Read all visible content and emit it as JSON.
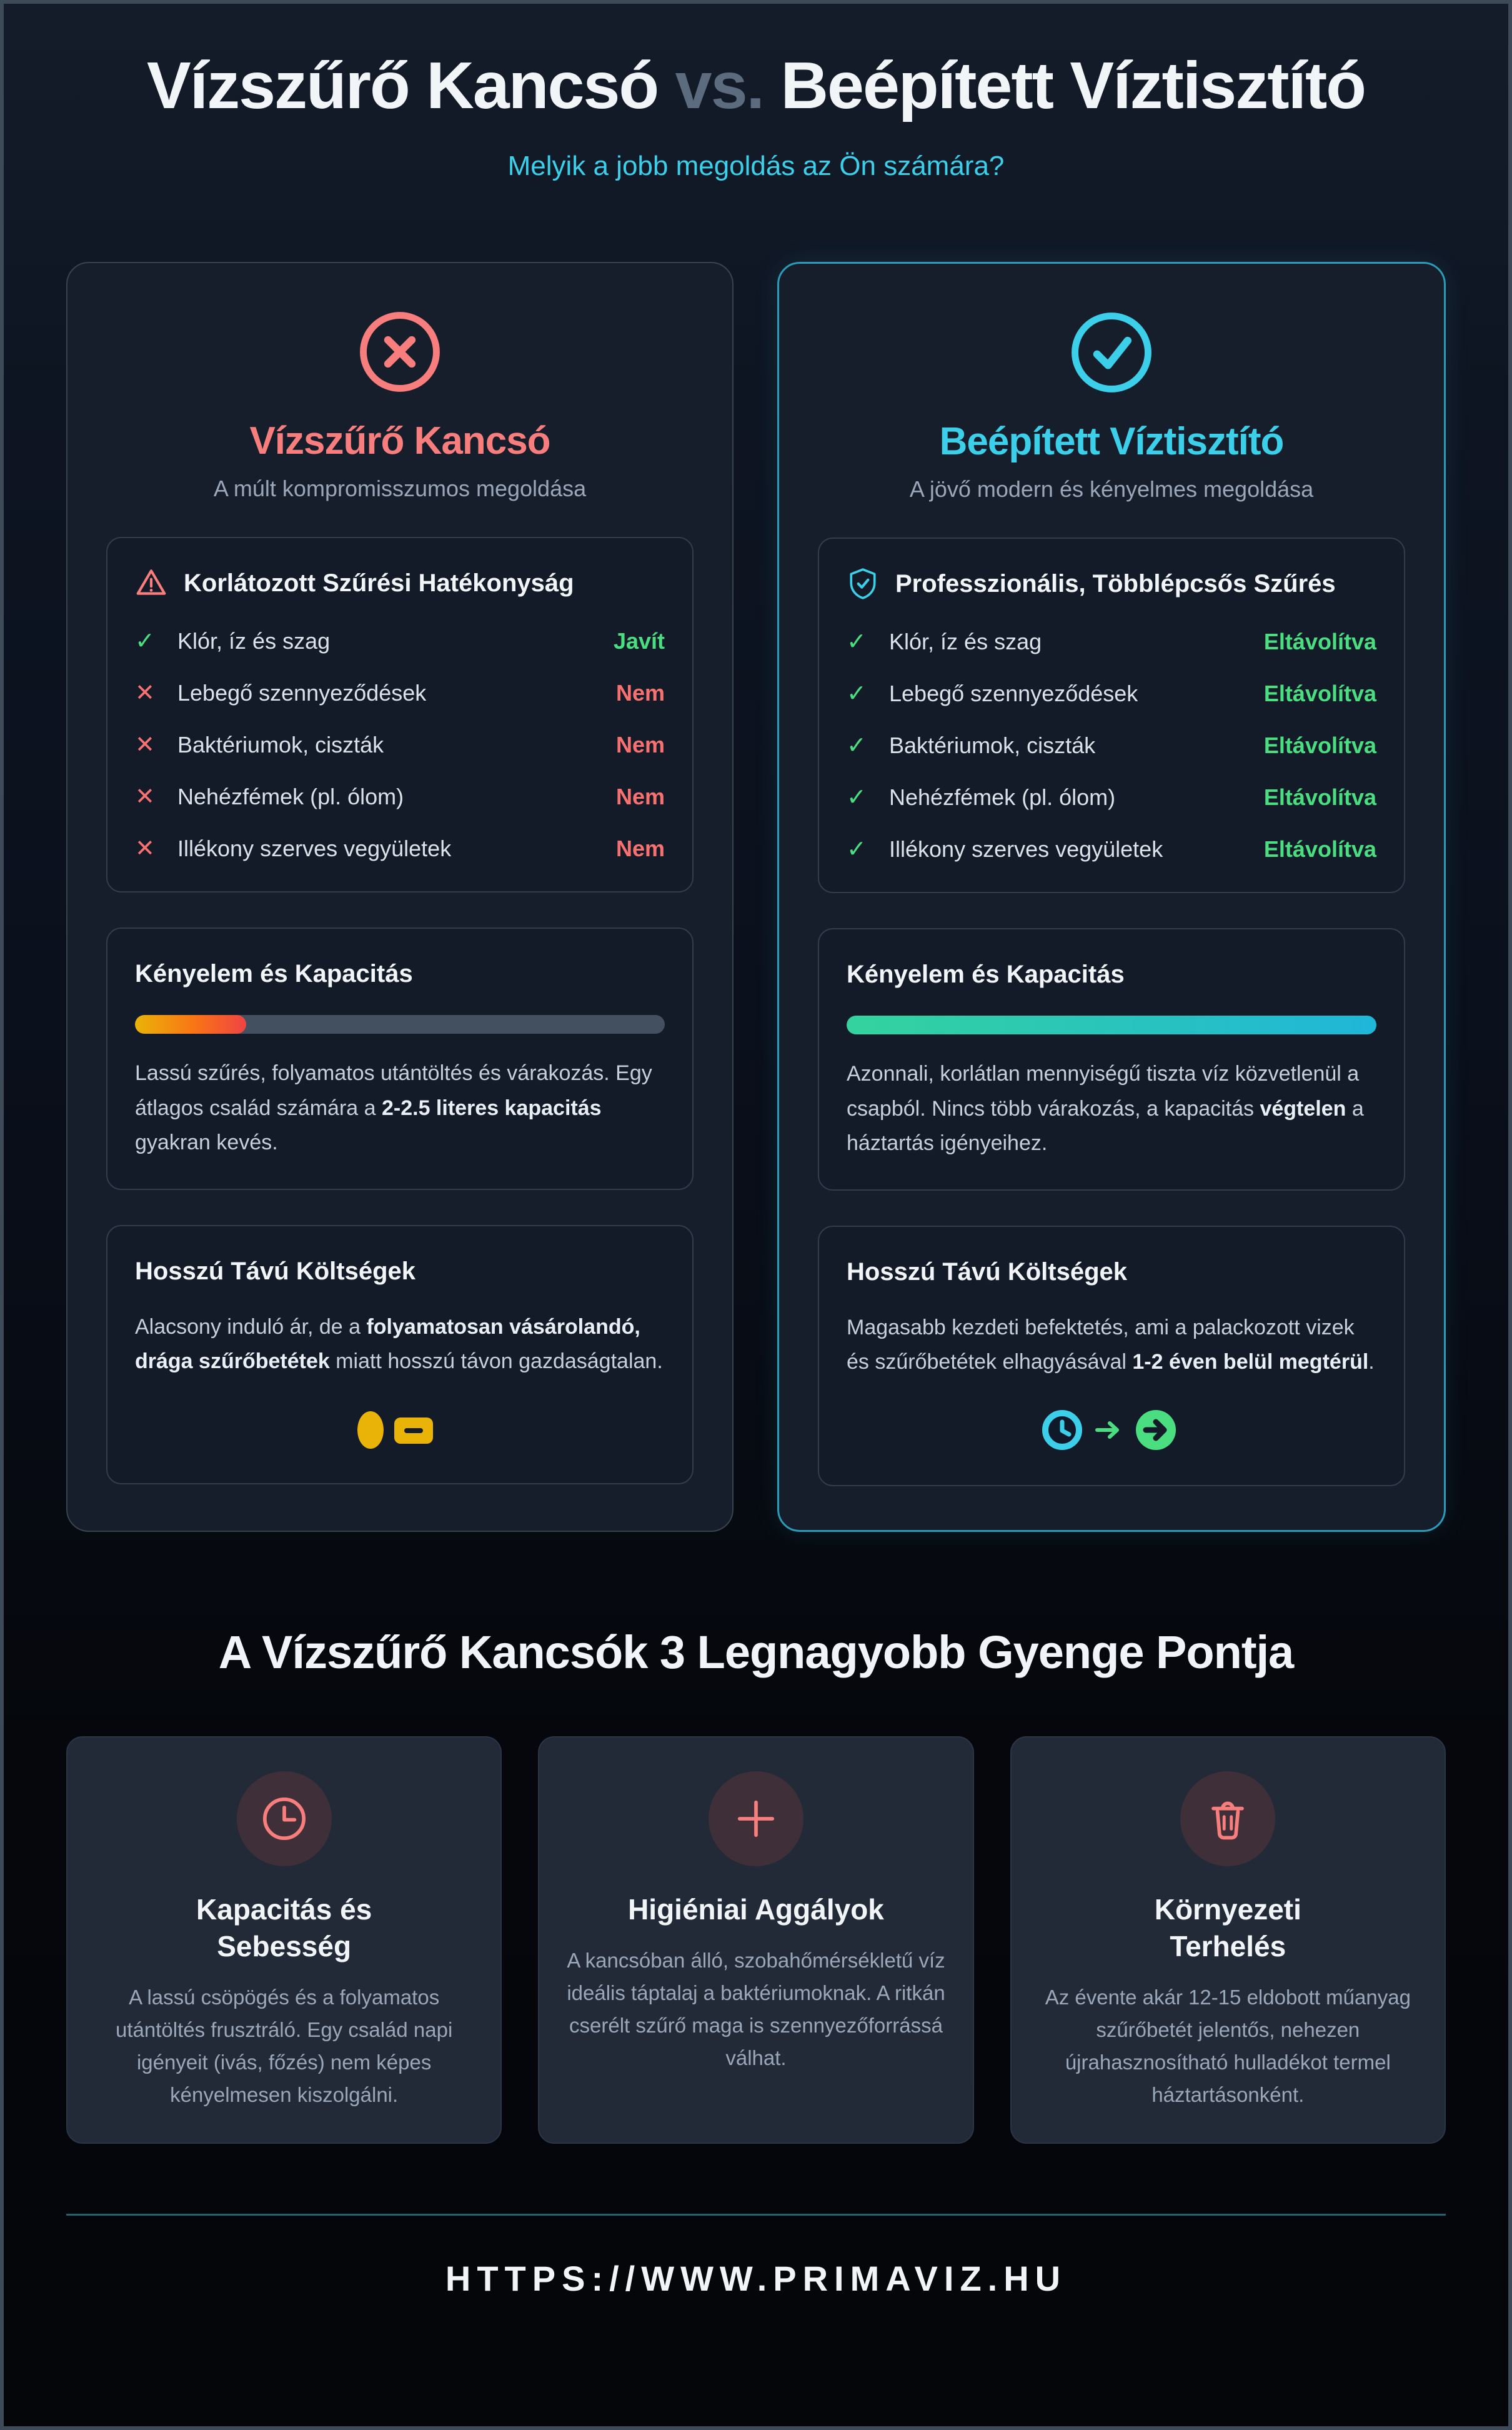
{
  "colors": {
    "page-border": "#3f4a59",
    "bg-top": "#141c2a",
    "bg-bottom": "#04060a",
    "card-bg": "#161e2c",
    "card-border": "#39434f",
    "box-bg": "#131b28",
    "box-border": "#313c4d",
    "bottom-card-bg": "#222a38",
    "white": "#f2f5f8",
    "muted": "#9aa7b8",
    "body": "#c6cfda",
    "salmon": "#f87d7d",
    "red": "#f87171",
    "green": "#4ade80",
    "cyan": "#3bcfe9",
    "cyan-border": "#2b9cb8",
    "vs": "#5c6b7e",
    "gold": "#eab308",
    "track": "#43505f",
    "divider": "#25626c"
  },
  "header": {
    "title_left": "Vízszűrő Kancsó",
    "title_vs": "vs.",
    "title_right": "Beépített Víztisztító",
    "subtitle": "Melyik a jobb megoldás az Ön számára?"
  },
  "left_card": {
    "icon": "x-circle-icon",
    "title": "Vízszűrő Kancsó",
    "subtitle": "A múlt kompromisszumos megoldása",
    "filter_box": {
      "icon": "warning-triangle-icon",
      "title": "Korlátozott Szűrési Hatékonyság",
      "rows": [
        {
          "icon": "check",
          "label": "Klór, íz és szag",
          "status": "Javít",
          "status_type": "good"
        },
        {
          "icon": "cross",
          "label": "Lebegő szennyeződések",
          "status": "Nem",
          "status_type": "bad"
        },
        {
          "icon": "cross",
          "label": "Baktériumok, ciszták",
          "status": "Nem",
          "status_type": "bad"
        },
        {
          "icon": "cross",
          "label": "Nehézfémek (pl. ólom)",
          "status": "Nem",
          "status_type": "bad"
        },
        {
          "icon": "cross",
          "label": "Illékony szerves vegyületek",
          "status": "Nem",
          "status_type": "bad"
        }
      ]
    },
    "capacity_box": {
      "title": "Kényelem és Kapacitás",
      "progress_percent": 21,
      "body": [
        {
          "text": "Lassú szűrés, folyamatos utántöltés és várakozás. Egy átlagos család számára a "
        },
        {
          "text": "2-2.5 literes kapacitás",
          "bold": true
        },
        {
          "text": " gyakran kevés."
        }
      ]
    },
    "cost_box": {
      "title": "Hosszú Távú Költségek",
      "body": [
        {
          "text": "Alacsony induló ár, de a "
        },
        {
          "text": "folyamatosan vásárolandó, drága szűrőbetétek",
          "bold": true
        },
        {
          "text": " miatt hosszú távon gazdaságtalan."
        }
      ],
      "icons": [
        "coin-icon",
        "banknote-icon"
      ]
    }
  },
  "right_card": {
    "icon": "check-circle-icon",
    "title": "Beépített Víztisztító",
    "subtitle": "A jövő modern és kényelmes megoldása",
    "filter_box": {
      "icon": "shield-check-icon",
      "title": "Professzionális, Többlépcsős Szűrés",
      "rows": [
        {
          "icon": "check",
          "label": "Klór, íz és szag",
          "status": "Eltávolítva",
          "status_type": "good"
        },
        {
          "icon": "check",
          "label": "Lebegő szennyeződések",
          "status": "Eltávolítva",
          "status_type": "good"
        },
        {
          "icon": "check",
          "label": "Baktériumok, ciszták",
          "status": "Eltávolítva",
          "status_type": "good"
        },
        {
          "icon": "check",
          "label": "Nehézfémek (pl. ólom)",
          "status": "Eltávolítva",
          "status_type": "good"
        },
        {
          "icon": "check",
          "label": "Illékony szerves vegyületek",
          "status": "Eltávolítva",
          "status_type": "good"
        }
      ]
    },
    "capacity_box": {
      "title": "Kényelem és Kapacitás",
      "progress_percent": 100,
      "body": [
        {
          "text": "Azonnali, korlátlan mennyiségű tiszta víz közvetlenül a csapból. Nincs több várakozás, a kapacitás "
        },
        {
          "text": "végtelen",
          "bold": true
        },
        {
          "text": " a háztartás igényeihez."
        }
      ]
    },
    "cost_box": {
      "title": "Hosszú Távú Költségek",
      "body": [
        {
          "text": "Magasabb kezdeti befektetés, ami a palackozott vizek és szűrőbetétek elhagyásával "
        },
        {
          "text": "1-2 éven belül megtérül",
          "bold": true
        },
        {
          "text": "."
        }
      ],
      "icons": [
        "clock-icon",
        "arrow-right-icon",
        "arrow-circle-right-icon"
      ]
    }
  },
  "weaknesses": {
    "title": "A Vízszűrő Kancsók 3 Legnagyobb Gyenge Pontja",
    "cards": [
      {
        "icon": "clock-icon",
        "title": "Kapacitás és Sebesség",
        "body": "A lassú csöpögés és a folyamatos utántöltés frusztráló. Egy család napi igényeit (ivás, főzés) nem képes kényelmesen kiszolgálni."
      },
      {
        "icon": "plus-icon",
        "title": "Higiéniai Aggályok",
        "body": "A kancsóban álló, szobahőmérsékletű víz ideális táptalaj a baktériumoknak. A ritkán cserélt szűrő maga is szennyezőforrássá válhat."
      },
      {
        "icon": "trash-icon",
        "title": "Környezeti Terhelés",
        "body": "Az évente akár 12-15 eldobott műanyag szűrőbetét jelentős, nehezen újrahasznosítható hulladékot termel háztartásonként."
      }
    ]
  },
  "footer": {
    "url": "HTTPS://WWW.PRIMAVIZ.HU"
  }
}
